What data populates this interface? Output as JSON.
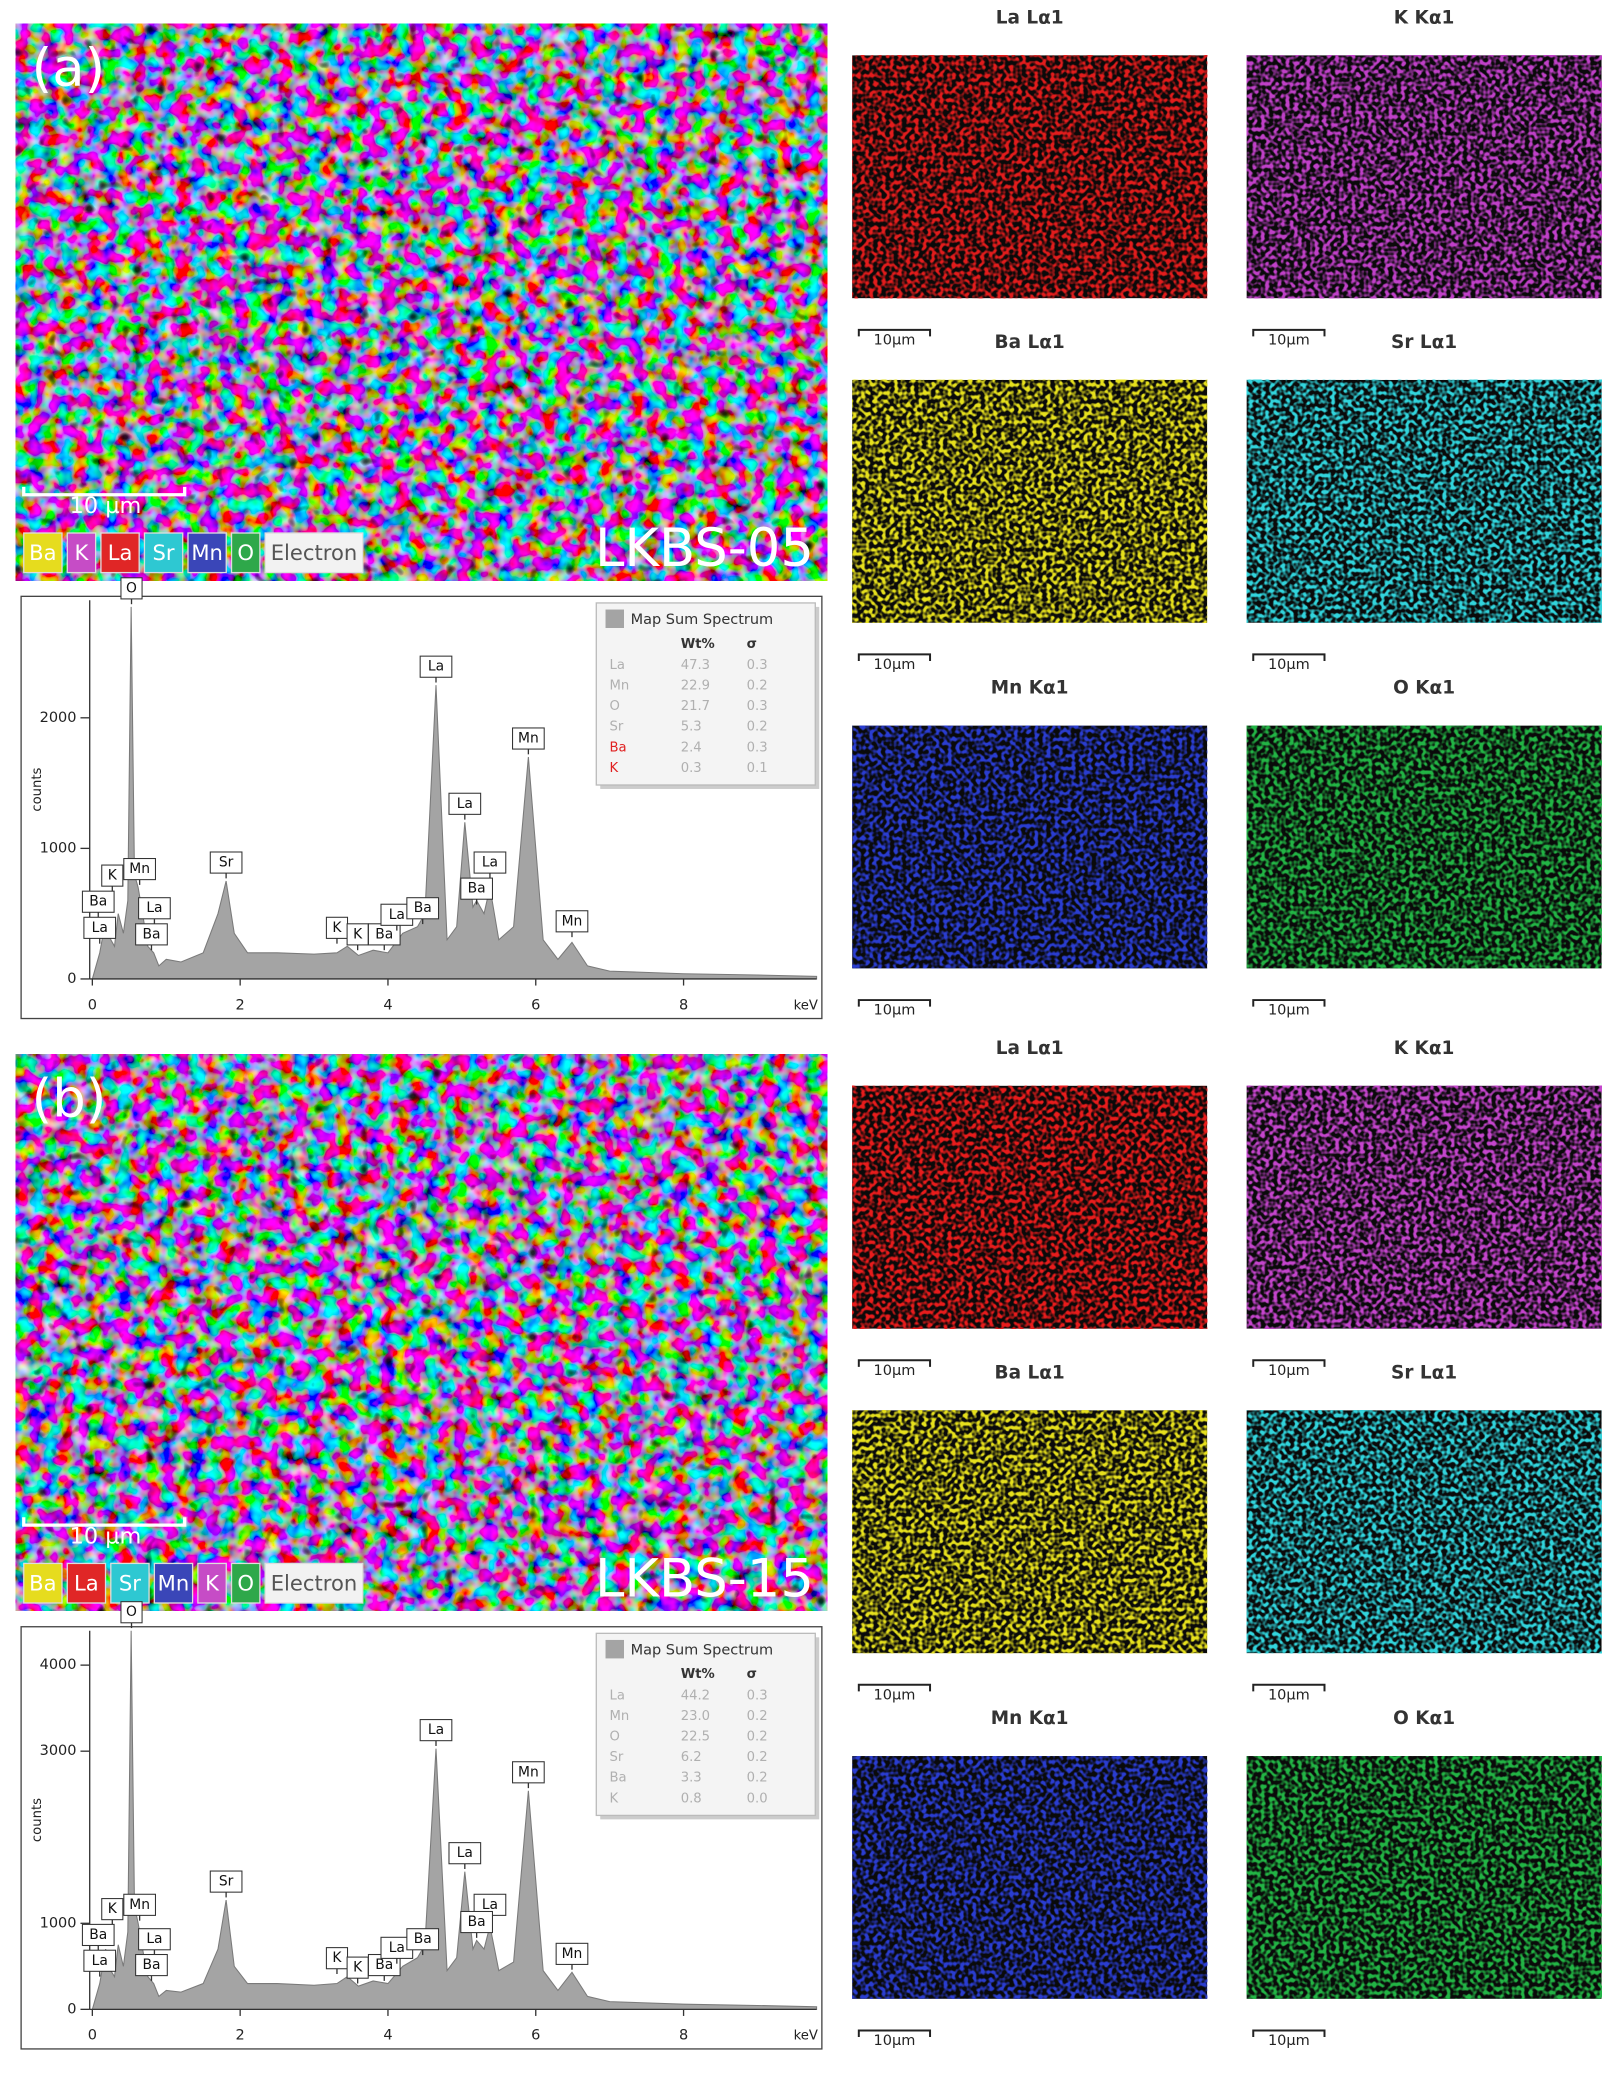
{
  "panels": [
    {
      "label": "(a)",
      "sample": "LKBS-05",
      "scale_bar": "10 µm",
      "elements": [
        {
          "text": "Ba",
          "color": "#e6dc1e"
        },
        {
          "text": "K",
          "color": "#c64cc6"
        },
        {
          "text": "La",
          "color": "#e02626"
        },
        {
          "text": "Sr",
          "color": "#2ec8d2"
        },
        {
          "text": "Mn",
          "color": "#3a46b8"
        },
        {
          "text": "O",
          "color": "#2ea84a"
        },
        {
          "text": "Electron",
          "color": "#f2f2f2"
        }
      ],
      "maps": [
        {
          "title": "La Lα1",
          "scale_bar": "10µm",
          "color": "#e21c1c"
        },
        {
          "title": "K Kα1",
          "scale_bar": "10µm",
          "color": "#c040c8"
        },
        {
          "title": "Ba Lα1",
          "scale_bar": "10µm",
          "color": "#e6e01e"
        },
        {
          "title": "Sr Lα1",
          "scale_bar": "10µm",
          "color": "#30d4dc"
        },
        {
          "title": "Mn Kα1",
          "scale_bar": "10µm",
          "color": "#2a3cd0"
        },
        {
          "title": "O Kα1",
          "scale_bar": "10µm",
          "color": "#22b444"
        }
      ]
    },
    {
      "label": "(b)",
      "sample": "LKBS-15",
      "scale_bar": "10 µm",
      "elements": [
        {
          "text": "Ba",
          "color": "#e6dc1e"
        },
        {
          "text": "La",
          "color": "#e02626"
        },
        {
          "text": "Sr",
          "color": "#2ec8d2"
        },
        {
          "text": "Mn",
          "color": "#3a46b8"
        },
        {
          "text": "K",
          "color": "#c64cc6"
        },
        {
          "text": "O",
          "color": "#2ea84a"
        },
        {
          "text": "Electron",
          "color": "#f2f2f2"
        }
      ],
      "maps": [
        {
          "title": "La Lα1",
          "scale_bar": "10µm",
          "color": "#e81c1c"
        },
        {
          "title": "K Kα1",
          "scale_bar": "10µm",
          "color": "#c444cc"
        },
        {
          "title": "Ba Lα1",
          "scale_bar": "10µm",
          "color": "#e6e01e"
        },
        {
          "title": "Sr Lα1",
          "scale_bar": "10µm",
          "color": "#30d4dc"
        },
        {
          "title": "Mn Kα1",
          "scale_bar": "10µm",
          "color": "#2a3cd0"
        },
        {
          "title": "O Kα1",
          "scale_bar": "10µm",
          "color": "#22b444"
        }
      ]
    }
  ],
  "chart_data": [
    {
      "type": "area",
      "color": "#a4a4a4",
      "xlabel": "keV",
      "ylabel": "counts",
      "xlim": [
        0,
        9.8
      ],
      "xticks": [
        0,
        2,
        4,
        6,
        8
      ],
      "ylim": [
        0,
        2900
      ],
      "yticks": [
        0,
        1000,
        2000
      ],
      "x": [
        0,
        0.1,
        0.18,
        0.25,
        0.3,
        0.35,
        0.42,
        0.48,
        0.525,
        0.57,
        0.62,
        0.68,
        0.75,
        0.83,
        0.9,
        1.0,
        1.2,
        1.5,
        1.7,
        1.81,
        1.92,
        2.1,
        2.5,
        3.0,
        3.31,
        3.45,
        3.6,
        3.8,
        4.0,
        4.2,
        4.4,
        4.5,
        4.65,
        4.8,
        4.93,
        5.04,
        5.15,
        5.2,
        5.3,
        5.38,
        5.5,
        5.7,
        5.9,
        6.1,
        6.3,
        6.49,
        6.7,
        7.0,
        8.0,
        9.0,
        9.8
      ],
      "values": [
        0,
        200,
        450,
        300,
        250,
        500,
        350,
        600,
        2850,
        800,
        700,
        500,
        250,
        200,
        100,
        150,
        130,
        200,
        500,
        750,
        350,
        200,
        200,
        190,
        200,
        250,
        180,
        220,
        200,
        350,
        400,
        500,
        2250,
        300,
        400,
        1200,
        550,
        600,
        500,
        700,
        300,
        400,
        1700,
        300,
        150,
        280,
        100,
        60,
        40,
        30,
        20
      ],
      "annotations": [
        {
          "text": "O",
          "x": 0.53,
          "y": 2850
        },
        {
          "text": "La",
          "x": 4.65,
          "y": 2250
        },
        {
          "text": "Mn",
          "x": 5.9,
          "y": 1700
        },
        {
          "text": "La",
          "x": 5.04,
          "y": 1200
        },
        {
          "text": "La",
          "x": 5.38,
          "y": 750
        },
        {
          "text": "Ba",
          "x": 5.2,
          "y": 550
        },
        {
          "text": "Mn",
          "x": 6.49,
          "y": 300
        },
        {
          "text": "Sr",
          "x": 1.81,
          "y": 750
        },
        {
          "text": "K",
          "x": 3.31,
          "y": 250
        },
        {
          "text": "K",
          "x": 3.59,
          "y": 200
        },
        {
          "text": "Ba",
          "x": 3.95,
          "y": 200
        },
        {
          "text": "La",
          "x": 4.12,
          "y": 350
        },
        {
          "text": "Ba",
          "x": 4.47,
          "y": 400
        },
        {
          "text": "K",
          "x": 0.27,
          "y": 650
        },
        {
          "text": "Mn",
          "x": 0.64,
          "y": 700
        },
        {
          "text": "Ba",
          "x": 0.08,
          "y": 450
        },
        {
          "text": "La",
          "x": 0.1,
          "y": 250
        },
        {
          "text": "La",
          "x": 0.84,
          "y": 400
        },
        {
          "text": "Ba",
          "x": 0.8,
          "y": 200
        }
      ],
      "legend_table": {
        "title": "Map Sum Spectrum",
        "headers": [
          "Wt%",
          "σ"
        ],
        "rows": [
          {
            "element": "La",
            "wt": "47.3",
            "sigma": "0.3",
            "color": "#b0b0b0"
          },
          {
            "element": "Mn",
            "wt": "22.9",
            "sigma": "0.2",
            "color": "#b0b0b0"
          },
          {
            "element": "O",
            "wt": "21.7",
            "sigma": "0.3",
            "color": "#b0b0b0"
          },
          {
            "element": "Sr",
            "wt": "5.3",
            "sigma": "0.2",
            "color": "#b0b0b0"
          },
          {
            "element": "Ba",
            "wt": "2.4",
            "sigma": "0.3",
            "color": "#e02020"
          },
          {
            "element": "K",
            "wt": "0.3",
            "sigma": "0.1",
            "color": "#e02020"
          }
        ]
      }
    },
    {
      "type": "area",
      "color": "#a4a4a4",
      "xlabel": "keV",
      "ylabel": "counts",
      "xlim": [
        0,
        9.8
      ],
      "xticks": [
        0,
        2,
        4,
        6,
        8
      ],
      "ylim": [
        0,
        4400
      ],
      "yticks": [
        0,
        1000,
        3000,
        4000
      ],
      "x": [
        0,
        0.1,
        0.18,
        0.25,
        0.3,
        0.35,
        0.42,
        0.48,
        0.525,
        0.57,
        0.62,
        0.68,
        0.75,
        0.83,
        0.9,
        1.0,
        1.2,
        1.5,
        1.7,
        1.81,
        1.92,
        2.1,
        2.5,
        3.0,
        3.31,
        3.45,
        3.6,
        3.8,
        4.0,
        4.2,
        4.4,
        4.5,
        4.65,
        4.8,
        4.93,
        5.04,
        5.15,
        5.2,
        5.3,
        5.38,
        5.5,
        5.7,
        5.9,
        6.1,
        6.3,
        6.49,
        6.7,
        7.0,
        8.0,
        9.0,
        9.8
      ],
      "values": [
        0,
        300,
        700,
        450,
        380,
        750,
        500,
        900,
        4400,
        1200,
        1000,
        700,
        380,
        300,
        150,
        220,
        200,
        300,
        700,
        1270,
        500,
        300,
        300,
        280,
        300,
        380,
        270,
        330,
        300,
        500,
        600,
        750,
        3030,
        450,
        600,
        1600,
        700,
        800,
        700,
        970,
        450,
        550,
        2540,
        450,
        220,
        430,
        150,
        90,
        60,
        45,
        30
      ],
      "annotations": [
        {
          "text": "O",
          "x": 0.53,
          "y": 4400
        },
        {
          "text": "La",
          "x": 4.65,
          "y": 3030
        },
        {
          "text": "Mn",
          "x": 5.9,
          "y": 2540
        },
        {
          "text": "La",
          "x": 5.04,
          "y": 1600
        },
        {
          "text": "La",
          "x": 5.38,
          "y": 1000
        },
        {
          "text": "Ba",
          "x": 5.2,
          "y": 800
        },
        {
          "text": "Mn",
          "x": 6.49,
          "y": 430
        },
        {
          "text": "Sr",
          "x": 1.81,
          "y": 1270
        },
        {
          "text": "K",
          "x": 3.31,
          "y": 380
        },
        {
          "text": "K",
          "x": 3.59,
          "y": 270
        },
        {
          "text": "Ba",
          "x": 3.95,
          "y": 300
        },
        {
          "text": "La",
          "x": 4.12,
          "y": 500
        },
        {
          "text": "Ba",
          "x": 4.47,
          "y": 600
        },
        {
          "text": "K",
          "x": 0.27,
          "y": 950
        },
        {
          "text": "Mn",
          "x": 0.64,
          "y": 1000
        },
        {
          "text": "Ba",
          "x": 0.08,
          "y": 650
        },
        {
          "text": "La",
          "x": 0.1,
          "y": 350
        },
        {
          "text": "La",
          "x": 0.84,
          "y": 600
        },
        {
          "text": "Ba",
          "x": 0.8,
          "y": 300
        }
      ],
      "legend_table": {
        "title": "Map Sum Spectrum",
        "headers": [
          "Wt%",
          "σ"
        ],
        "rows": [
          {
            "element": "La",
            "wt": "44.2",
            "sigma": "0.3",
            "color": "#b0b0b0"
          },
          {
            "element": "Mn",
            "wt": "23.0",
            "sigma": "0.2",
            "color": "#b0b0b0"
          },
          {
            "element": "O",
            "wt": "22.5",
            "sigma": "0.2",
            "color": "#b0b0b0"
          },
          {
            "element": "Sr",
            "wt": "6.2",
            "sigma": "0.2",
            "color": "#b0b0b0"
          },
          {
            "element": "Ba",
            "wt": "3.3",
            "sigma": "0.2",
            "color": "#b0b0b0"
          },
          {
            "element": "K",
            "wt": "0.8",
            "sigma": "0.0",
            "color": "#b0b0b0"
          }
        ]
      }
    }
  ]
}
